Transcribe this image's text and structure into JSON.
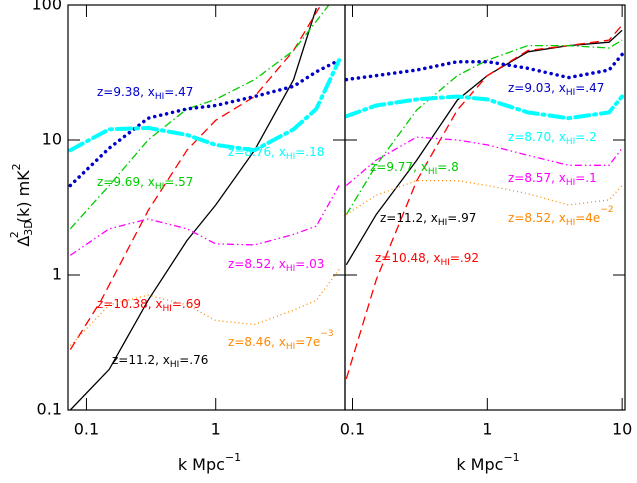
{
  "chart_data": [
    {
      "type": "line",
      "log_x": true,
      "log_y": true,
      "ylabel": [
        "Δ",
        "3D",
        "2",
        "(k)  mK",
        "2"
      ],
      "xlabel": [
        "k Mpc",
        "−1"
      ],
      "xlim": [
        0.072,
        10
      ],
      "ylim": [
        0.1,
        100
      ],
      "xticks": [
        0.1,
        1
      ],
      "yticks": [
        0.1,
        1,
        10,
        100
      ],
      "series": [
        {
          "label": [
            "z=11.2, x",
            "HI",
            "=.76"
          ],
          "color": "#000000",
          "style": "solid",
          "x": [
            0.075,
            0.15,
            0.3,
            0.6,
            1,
            2,
            4,
            6
          ],
          "values": [
            0.1,
            0.2,
            0.65,
            1.8,
            3.3,
            8.4,
            28,
            95
          ]
        },
        {
          "label": [
            "z=10.38, x",
            "HI",
            "=.69"
          ],
          "color": "#ff0000",
          "style": "dashed",
          "x": [
            0.075,
            0.13,
            0.3,
            0.6,
            1,
            2,
            4,
            6.5
          ],
          "values": [
            0.28,
            0.65,
            3,
            8.4,
            14,
            21,
            46,
            100
          ]
        },
        {
          "label": [
            "z=9.69, x",
            "HI",
            "=.57"
          ],
          "color": "#00cc00",
          "style": "dashdot",
          "x": [
            0.075,
            0.15,
            0.3,
            0.6,
            1,
            2,
            4,
            7.5
          ],
          "values": [
            2.2,
            4.6,
            10,
            17,
            20,
            28,
            46,
            100
          ]
        },
        {
          "label": [
            "z=9.38, x",
            "HI",
            "=.47"
          ],
          "color": "#0000cc",
          "style": "dotted",
          "x": [
            0.075,
            0.15,
            0.3,
            0.6,
            1,
            2,
            4,
            6,
            9
          ],
          "values": [
            4.6,
            8.7,
            14.5,
            17,
            18,
            21,
            25,
            32,
            39
          ]
        },
        {
          "label": [
            "z=8.76, x",
            "HI",
            "=.18"
          ],
          "color": "#00ffff",
          "style": "thickdashdot",
          "x": [
            0.075,
            0.15,
            0.3,
            0.6,
            1,
            2,
            4,
            6,
            9
          ],
          "values": [
            8.4,
            12,
            12.3,
            10.9,
            9.2,
            8.4,
            12,
            17,
            39
          ]
        },
        {
          "label": [
            "z=8.52, x",
            "HI",
            "=.03"
          ],
          "color": "#ff00ff",
          "style": "dashdotdot",
          "x": [
            0.075,
            0.15,
            0.3,
            0.6,
            1,
            2,
            4,
            6,
            9
          ],
          "values": [
            1.4,
            2.2,
            2.6,
            2.2,
            1.7,
            1.67,
            2,
            2.3,
            4.6
          ]
        },
        {
          "label": [
            "z=8.46, x",
            "HI",
            "=7e",
            "−3"
          ],
          "color": "#ff8800",
          "style": "finedotted",
          "x": [
            0.075,
            0.15,
            0.3,
            0.6,
            1,
            2,
            4,
            6,
            9
          ],
          "values": [
            0.3,
            0.6,
            0.71,
            0.6,
            0.46,
            0.43,
            0.55,
            0.65,
            1.1
          ]
        }
      ]
    },
    {
      "type": "line",
      "log_x": true,
      "log_y": true,
      "xlabel": [
        "k Mpc",
        "−1"
      ],
      "xlim": [
        0.088,
        10.5
      ],
      "ylim": [
        0.1,
        100
      ],
      "xticks": [
        0.1,
        1,
        10
      ],
      "series": [
        {
          "label": [
            "z=11.2, x",
            "HI",
            "=.97"
          ],
          "color": "#000000",
          "style": "solid",
          "x": [
            0.09,
            0.15,
            0.3,
            0.6,
            1,
            2,
            4,
            8,
            10
          ],
          "values": [
            1.19,
            2.8,
            7.1,
            19.8,
            30,
            45,
            50,
            53,
            65
          ]
        },
        {
          "label": [
            "z=10.48, x",
            "HI",
            "=.92"
          ],
          "color": "#ff0000",
          "style": "dashed",
          "x": [
            0.09,
            0.15,
            0.3,
            0.6,
            1,
            2,
            4,
            8,
            10
          ],
          "values": [
            0.17,
            0.92,
            5,
            16.7,
            30,
            46,
            50,
            55,
            71
          ]
        },
        {
          "label": [
            "z=9.77, x",
            "HI",
            "=.8"
          ],
          "color": "#00cc00",
          "style": "dashdot",
          "x": [
            0.09,
            0.15,
            0.3,
            0.6,
            1,
            2,
            4,
            8,
            10
          ],
          "values": [
            2.8,
            6.5,
            16.7,
            30,
            39,
            50,
            50,
            48,
            55
          ]
        },
        {
          "label": [
            "z=9.03, x",
            "HI",
            "=.47"
          ],
          "color": "#0000cc",
          "style": "dotted",
          "x": [
            0.09,
            0.15,
            0.3,
            0.6,
            1,
            2,
            4,
            8,
            10
          ],
          "values": [
            28,
            30,
            33,
            38,
            38,
            34,
            29,
            33,
            43
          ]
        },
        {
          "label": [
            "z=8.70, x",
            "HI",
            "=.2"
          ],
          "color": "#00ffff",
          "style": "thickdashdot",
          "x": [
            0.09,
            0.15,
            0.3,
            0.6,
            1,
            2,
            4,
            8,
            10
          ],
          "values": [
            15,
            18,
            20,
            21,
            20,
            16,
            14.5,
            16,
            21
          ]
        },
        {
          "label": [
            "z=8.57, x",
            "HI",
            "=.1"
          ],
          "color": "#ff00ff",
          "style": "dashdotdot",
          "x": [
            0.09,
            0.15,
            0.3,
            0.6,
            1,
            2,
            4,
            8,
            10
          ],
          "values": [
            4.6,
            7.1,
            10.5,
            10,
            9.2,
            7.7,
            6.5,
            6.5,
            8.7
          ]
        },
        {
          "label": [
            "z=8.52, x",
            "HI",
            "=4e",
            "−2"
          ],
          "color": "#ff8800",
          "style": "finedotted",
          "x": [
            0.09,
            0.15,
            0.3,
            0.6,
            1,
            2,
            4,
            8,
            10
          ],
          "values": [
            2.8,
            3.9,
            5,
            5,
            4.6,
            4,
            3.3,
            3.6,
            4.6
          ]
        }
      ]
    }
  ]
}
